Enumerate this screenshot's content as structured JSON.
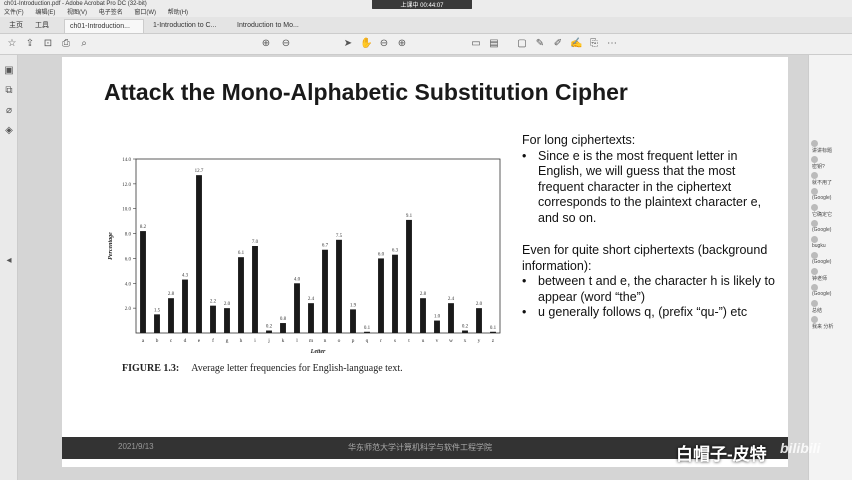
{
  "window": {
    "title": "ch01-Introduction.pdf - Adobe Acrobat Pro DC (32-bit)",
    "menu": [
      "文件(F)",
      "编辑(E)",
      "视图(V)",
      "电子签名",
      "窗口(W)",
      "帮助(H)"
    ],
    "recording": "上课中 00:44:07"
  },
  "tabs": [
    {
      "label": "主页"
    },
    {
      "label": "工具"
    },
    {
      "label": "ch01-Introduction..."
    },
    {
      "label": "1-Introduction to C..."
    },
    {
      "label": "Introduction to Mo..."
    }
  ],
  "toolbar": {
    "page_current": "4",
    "page_total": "/ 65",
    "zoom": "84.3%",
    "login": "登录"
  },
  "slide": {
    "title": "Attack the Mono-Alphabetic Substitution Cipher",
    "text": {
      "p1": "For long ciphertexts:",
      "b1": "Since e is the most frequent letter in English, we will guess that the most frequent character in the ciphertext corresponds to the plaintext character e, and so on.",
      "p2": "Even for quite short ciphertexts (background information):",
      "b2": "between t and e, the character h is likely to appear (word “the”)",
      "b3": "u generally follows q, (prefix “qu-”) etc"
    },
    "figure_label": "FIGURE 1.3:",
    "figure_caption": "Average letter frequencies for English-language text.",
    "footer_date": "2021/9/13",
    "footer_org": "华东师范大学计算机科学与软件工程学院"
  },
  "watermark": {
    "text": "白帽子-皮特",
    "logo": "bilibili"
  },
  "chart_data": {
    "type": "bar",
    "xlabel": "Letter",
    "ylabel": "Percentage",
    "ylim": [
      0,
      14
    ],
    "yticks": [
      "2.0",
      "4.0",
      "6.0",
      "8.0",
      "10.0",
      "12.0",
      "14.0"
    ],
    "categories": [
      "a",
      "b",
      "c",
      "d",
      "e",
      "f",
      "g",
      "h",
      "i",
      "j",
      "k",
      "l",
      "m",
      "n",
      "o",
      "p",
      "q",
      "r",
      "s",
      "t",
      "u",
      "v",
      "w",
      "x",
      "y",
      "z"
    ],
    "values": [
      8.2,
      1.5,
      2.8,
      4.3,
      12.7,
      2.2,
      2.0,
      6.1,
      7.0,
      0.2,
      0.8,
      4.0,
      2.4,
      6.7,
      7.5,
      1.9,
      0.1,
      6.0,
      6.3,
      9.1,
      2.8,
      1.0,
      2.4,
      0.2,
      2.0,
      0.1
    ],
    "value_labels": [
      "8.2",
      "1.5",
      "2.8",
      "4.3",
      "12.7",
      "2.2",
      "2.0",
      "6.1",
      "7.0",
      "0.2",
      "0.8",
      "4.0",
      "2.4",
      "6.7",
      "7.5",
      "1.9",
      "0.1",
      "6.0",
      "6.3",
      "9.1",
      "2.8",
      "1.0",
      "2.4",
      "0.2",
      "2.0",
      "0.1"
    ],
    "bar_color": "#1a1a1a"
  },
  "sidebar_chat": [
    "讲讲标题",
    "密钥?",
    "就不用了",
    "(Google)",
    "它确定它",
    "(Google)",
    "bugku",
    "(Google)",
    "钟老师",
    "(Google)",
    "总结",
    "我来 分析"
  ]
}
